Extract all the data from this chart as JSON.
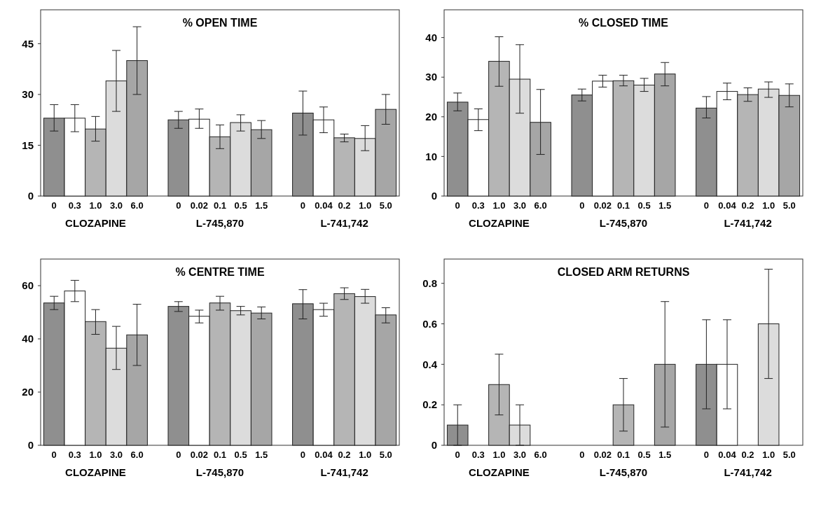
{
  "chart_data": [
    {
      "type": "bar",
      "title": "% OPEN TIME",
      "categories": [
        "0",
        "0.3",
        "1.0",
        "3.0",
        "6.0",
        null,
        "0",
        "0.02",
        "0.1",
        "0.5",
        "1.5",
        null,
        "0",
        "0.04",
        "0.2",
        "1.0",
        "5.0"
      ],
      "values": [
        23,
        23,
        19.8,
        34,
        40,
        null,
        22.5,
        22.7,
        17.5,
        21.7,
        19.6,
        null,
        24.5,
        22.5,
        17.2,
        17,
        25.6
      ],
      "errors": [
        [
          19.2,
          27
        ],
        [
          19,
          27
        ],
        [
          16.2,
          23.5
        ],
        [
          25,
          43
        ],
        [
          30,
          50
        ],
        null,
        [
          20,
          25
        ],
        [
          20,
          25.7
        ],
        [
          14,
          21
        ],
        [
          19.2,
          24
        ],
        [
          17,
          22.3
        ],
        null,
        [
          18,
          31
        ],
        [
          18.7,
          26.3
        ],
        [
          16,
          18.3
        ],
        [
          13.4,
          20.8
        ],
        [
          21.2,
          30
        ]
      ],
      "colors": [
        "#8f8f8f",
        "#ffffff",
        "#b5b5b5",
        "#dcdcdc",
        "#a6a6a6",
        null,
        "#8f8f8f",
        "#ffffff",
        "#b5b5b5",
        "#dcdcdc",
        "#a6a6a6",
        null,
        "#8f8f8f",
        "#ffffff",
        "#b5b5b5",
        "#dcdcdc",
        "#a6a6a6"
      ],
      "ylim": [
        0,
        55
      ],
      "yticks": [
        0,
        15,
        30,
        45
      ],
      "annotations": [
        "CLOZAPINE",
        "L-745,870",
        "L-741,742"
      ]
    },
    {
      "type": "bar",
      "title": "% CLOSED TIME",
      "categories": [
        "0",
        "0.3",
        "1.0",
        "3.0",
        "6.0",
        null,
        "0",
        "0.02",
        "0.1",
        "0.5",
        "1.5",
        null,
        "0",
        "0.04",
        "0.2",
        "1.0",
        "5.0"
      ],
      "values": [
        23.7,
        19.3,
        34,
        29.5,
        18.6,
        null,
        25.5,
        29,
        29.1,
        28,
        30.8,
        null,
        22.2,
        26.4,
        25.6,
        27,
        25.4
      ],
      "errors": [
        [
          21.5,
          26
        ],
        [
          16.5,
          22
        ],
        [
          27.7,
          40.2
        ],
        [
          20.9,
          38.2
        ],
        [
          10.5,
          26.9
        ],
        null,
        [
          24,
          27
        ],
        [
          27.5,
          30.5
        ],
        [
          27.8,
          30.5
        ],
        [
          26.4,
          29.7
        ],
        [
          27.8,
          33.7
        ],
        null,
        [
          19.7,
          25.1
        ],
        [
          24.3,
          28.5
        ],
        [
          23.9,
          27.3
        ],
        [
          24.9,
          28.8
        ],
        [
          22.5,
          28.3
        ]
      ],
      "colors": [
        "#8f8f8f",
        "#ffffff",
        "#b5b5b5",
        "#dcdcdc",
        "#a6a6a6",
        null,
        "#8f8f8f",
        "#ffffff",
        "#b5b5b5",
        "#dcdcdc",
        "#a6a6a6",
        null,
        "#8f8f8f",
        "#ffffff",
        "#b5b5b5",
        "#dcdcdc",
        "#a6a6a6"
      ],
      "ylim": [
        0,
        47
      ],
      "yticks": [
        0,
        10,
        20,
        30,
        40
      ],
      "annotations": [
        "CLOZAPINE",
        "L-745,870",
        "L-741,742"
      ]
    },
    {
      "type": "bar",
      "title": "% CENTRE TIME",
      "categories": [
        "0",
        "0.3",
        "1.0",
        "3.0",
        "6.0",
        null,
        "0",
        "0.02",
        "0.1",
        "0.5",
        "1.5",
        null,
        "0",
        "0.04",
        "0.2",
        "1.0",
        "5.0"
      ],
      "values": [
        53.5,
        58,
        46.5,
        36.5,
        41.5,
        null,
        52.2,
        48.5,
        53.5,
        50.6,
        49.7,
        null,
        53.2,
        51,
        57,
        55.9,
        49
      ],
      "errors": [
        [
          51,
          56
        ],
        [
          54,
          62
        ],
        [
          41.7,
          51
        ],
        [
          28.5,
          44.7
        ],
        [
          30,
          53
        ],
        null,
        [
          50.3,
          54
        ],
        [
          46,
          50.8
        ],
        [
          50.8,
          56
        ],
        [
          49,
          52.2
        ],
        [
          47.5,
          52
        ],
        null,
        [
          47.5,
          58.5
        ],
        [
          48.5,
          53.4
        ],
        [
          54.8,
          59.2
        ],
        [
          53.4,
          58.6
        ],
        [
          46,
          51.7
        ]
      ],
      "colors": [
        "#8f8f8f",
        "#ffffff",
        "#b5b5b5",
        "#dcdcdc",
        "#a6a6a6",
        null,
        "#8f8f8f",
        "#ffffff",
        "#b5b5b5",
        "#dcdcdc",
        "#a6a6a6",
        null,
        "#8f8f8f",
        "#ffffff",
        "#b5b5b5",
        "#dcdcdc",
        "#a6a6a6"
      ],
      "ylim": [
        0,
        70
      ],
      "yticks": [
        0,
        20,
        40,
        60
      ],
      "annotations": [
        "CLOZAPINE",
        "L-745,870",
        "L-741,742"
      ]
    },
    {
      "type": "bar",
      "title": "CLOSED ARM RETURNS",
      "categories": [
        "0",
        "0.3",
        "1.0",
        "3.0",
        "6.0",
        null,
        "0",
        "0.02",
        "0.1",
        "0.5",
        "1.5",
        null,
        "0",
        "0.04",
        "0.2",
        "1.0",
        "5.0"
      ],
      "values": [
        0.1,
        0,
        0.3,
        0.1,
        0,
        null,
        0,
        0,
        0.2,
        0,
        0.4,
        null,
        0.4,
        0.4,
        0,
        0.6,
        0
      ],
      "errors": [
        [
          0,
          0.2
        ],
        null,
        [
          0.15,
          0.45
        ],
        [
          0,
          0.2
        ],
        null,
        null,
        null,
        null,
        [
          0.07,
          0.33
        ],
        null,
        [
          0.09,
          0.71
        ],
        null,
        [
          0.18,
          0.62
        ],
        [
          0.18,
          0.62
        ],
        null,
        [
          0.33,
          0.87
        ],
        null
      ],
      "colors": [
        "#8f8f8f",
        "#ffffff",
        "#b5b5b5",
        "#dcdcdc",
        "#a6a6a6",
        null,
        "#8f8f8f",
        "#ffffff",
        "#b5b5b5",
        "#dcdcdc",
        "#a6a6a6",
        null,
        "#8f8f8f",
        "#ffffff",
        "#b5b5b5",
        "#dcdcdc",
        "#a6a6a6"
      ],
      "ylim": [
        0,
        0.92
      ],
      "yticks": [
        0,
        0.2,
        0.4,
        0.6,
        0.8
      ],
      "annotations": [
        "CLOZAPINE",
        "L-745,870",
        "L-741,742"
      ]
    }
  ]
}
